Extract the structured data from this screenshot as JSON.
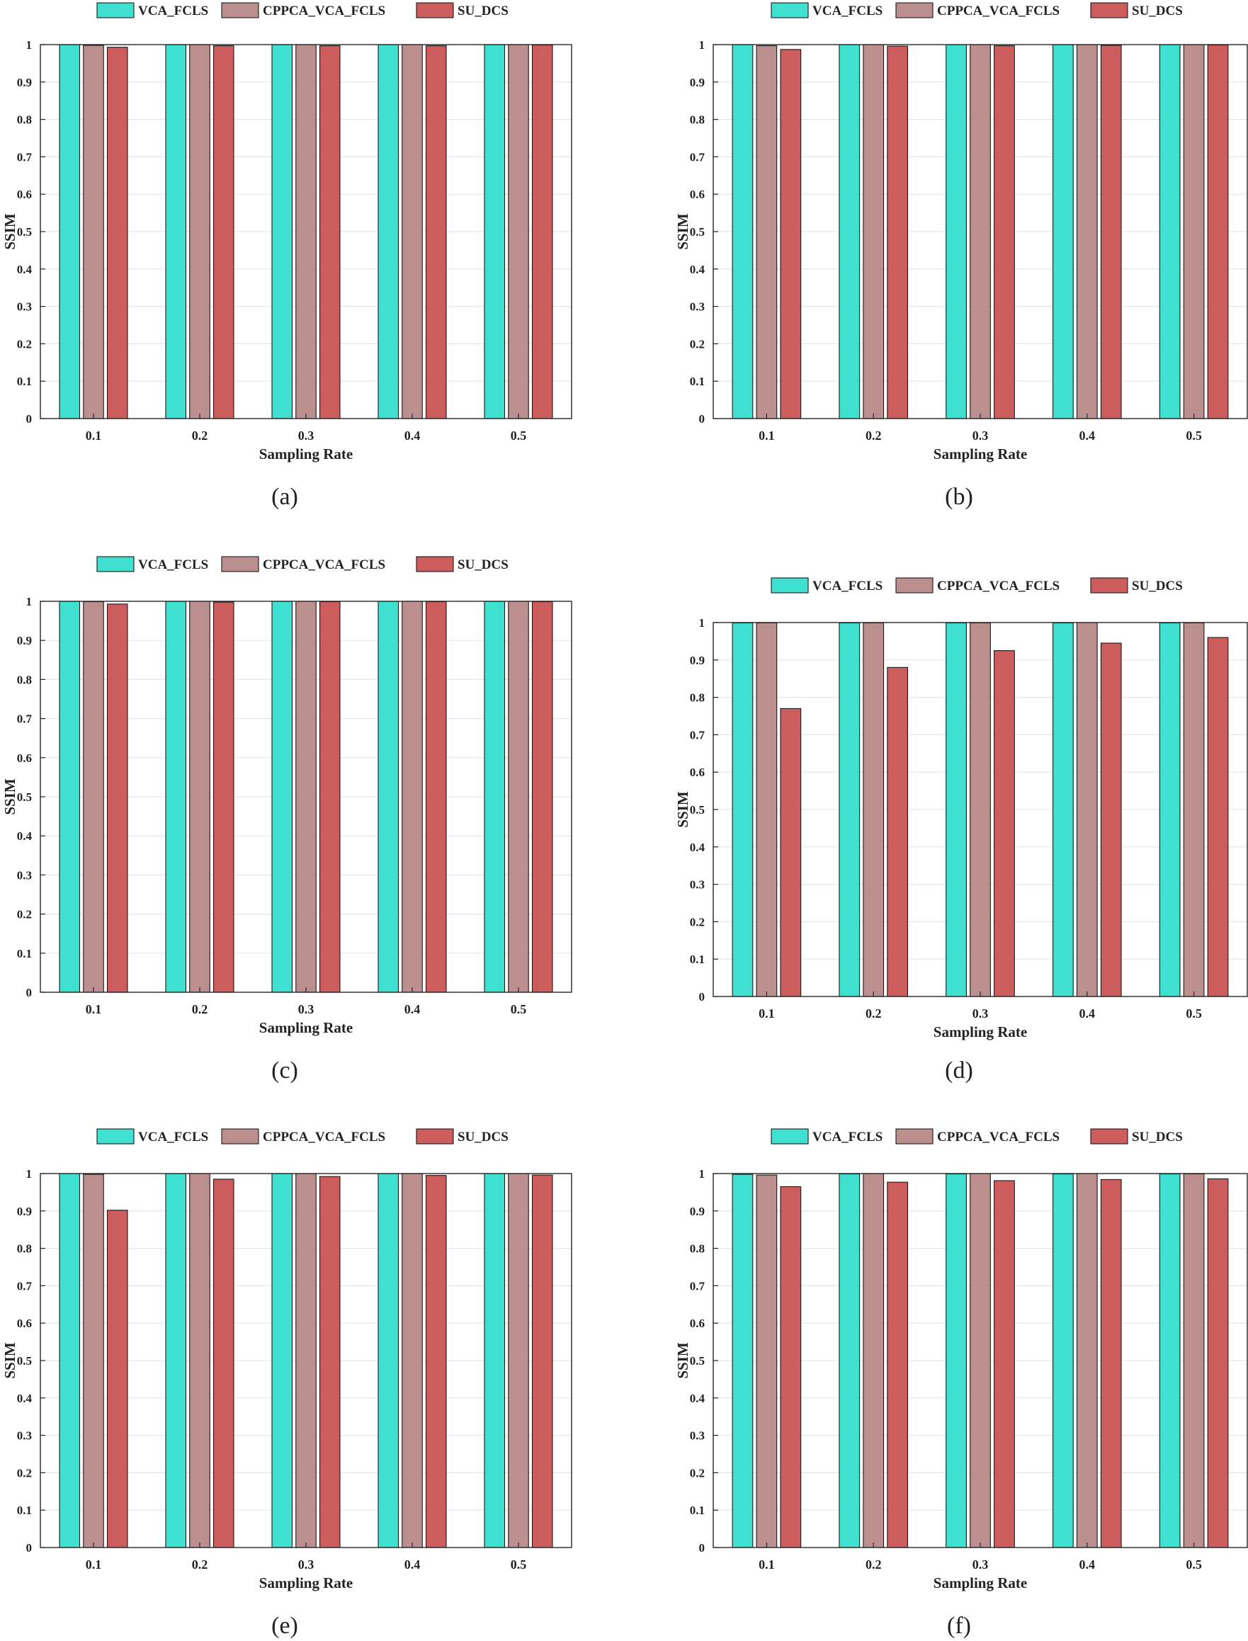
{
  "colors": {
    "VCA_FCLS": "#40E0D0",
    "CPPCA_VCA_FCLS": "#BC8F8F",
    "SU_DCS": "#CD5C5C",
    "axis": "#262626",
    "grid": "#e6e6e6"
  },
  "chart_data": [
    {
      "type": "bar",
      "caption": "(a)",
      "categories": [
        "0.1",
        "0.2",
        "0.3",
        "0.4",
        "0.5"
      ],
      "series": [
        {
          "name": "VCA_FCLS",
          "values": [
            1.0,
            1.0,
            1.0,
            1.0,
            1.0
          ]
        },
        {
          "name": "CPPCA_VCA_FCLS",
          "values": [
            0.998,
            1.0,
            1.0,
            1.0,
            1.0
          ]
        },
        {
          "name": "SU_DCS",
          "values": [
            0.993,
            0.997,
            0.997,
            0.997,
            0.999
          ]
        }
      ],
      "xlabel": "Sampling Rate",
      "ylabel": "SSIM",
      "ylim": [
        0,
        1
      ],
      "yticks": [
        "0",
        "0.1",
        "0.2",
        "0.3",
        "0.4",
        "0.5",
        "0.6",
        "0.7",
        "0.8",
        "0.9",
        "1"
      ],
      "grid": true,
      "legend": "top"
    },
    {
      "type": "bar",
      "caption": "(b)",
      "categories": [
        "0.1",
        "0.2",
        "0.3",
        "0.4",
        "0.5"
      ],
      "series": [
        {
          "name": "VCA_FCLS",
          "values": [
            1.0,
            1.0,
            1.0,
            1.0,
            1.0
          ]
        },
        {
          "name": "CPPCA_VCA_FCLS",
          "values": [
            0.997,
            1.0,
            1.0,
            1.0,
            1.0
          ]
        },
        {
          "name": "SU_DCS",
          "values": [
            0.987,
            0.996,
            0.997,
            0.998,
            0.999
          ]
        }
      ],
      "xlabel": "Sampling Rate",
      "ylabel": "SSIM",
      "ylim": [
        0,
        1
      ],
      "yticks": [
        "0",
        "0.1",
        "0.2",
        "0.3",
        "0.4",
        "0.5",
        "0.6",
        "0.7",
        "0.8",
        "0.9",
        "1"
      ],
      "grid": true,
      "legend": "top"
    },
    {
      "type": "bar",
      "caption": "(c)",
      "categories": [
        "0.1",
        "0.2",
        "0.3",
        "0.4",
        "0.5"
      ],
      "series": [
        {
          "name": "VCA_FCLS",
          "values": [
            1.0,
            1.0,
            1.0,
            1.0,
            1.0
          ]
        },
        {
          "name": "CPPCA_VCA_FCLS",
          "values": [
            0.999,
            1.0,
            1.0,
            1.0,
            1.0
          ]
        },
        {
          "name": "SU_DCS",
          "values": [
            0.993,
            0.998,
            0.999,
            0.999,
            0.999
          ]
        }
      ],
      "xlabel": "Sampling Rate",
      "ylabel": "SSIM",
      "ylim": [
        0,
        1
      ],
      "yticks": [
        "0",
        "0.1",
        "0.2",
        "0.3",
        "0.4",
        "0.5",
        "0.6",
        "0.7",
        "0.8",
        "0.9",
        "1"
      ],
      "grid": true,
      "legend": "top"
    },
    {
      "type": "bar",
      "caption": "(d)",
      "categories": [
        "0.1",
        "0.2",
        "0.3",
        "0.4",
        "0.5"
      ],
      "series": [
        {
          "name": "VCA_FCLS",
          "values": [
            0.999,
            0.999,
            0.999,
            0.999,
            0.999
          ]
        },
        {
          "name": "CPPCA_VCA_FCLS",
          "values": [
            0.999,
            0.999,
            0.999,
            1.0,
            0.999
          ]
        },
        {
          "name": "SU_DCS",
          "values": [
            0.77,
            0.88,
            0.925,
            0.945,
            0.96
          ]
        }
      ],
      "xlabel": "Sampling Rate",
      "ylabel": "SSIM",
      "ylim": [
        0,
        1
      ],
      "yticks": [
        "0",
        "0.1",
        "0.2",
        "0.3",
        "0.4",
        "0.5",
        "0.6",
        "0.7",
        "0.8",
        "0.9",
        "1"
      ],
      "grid": true,
      "legend": "top"
    },
    {
      "type": "bar",
      "caption": "(e)",
      "categories": [
        "0.1",
        "0.2",
        "0.3",
        "0.4",
        "0.5"
      ],
      "series": [
        {
          "name": "VCA_FCLS",
          "values": [
            1.0,
            1.0,
            1.0,
            1.0,
            1.0
          ]
        },
        {
          "name": "CPPCA_VCA_FCLS",
          "values": [
            0.998,
            1.0,
            1.0,
            1.0,
            1.0
          ]
        },
        {
          "name": "SU_DCS",
          "values": [
            0.902,
            0.985,
            0.992,
            0.995,
            0.996
          ]
        }
      ],
      "xlabel": "Sampling Rate",
      "ylabel": "SSIM",
      "ylim": [
        0,
        1
      ],
      "yticks": [
        "0",
        "0.1",
        "0.2",
        "0.3",
        "0.4",
        "0.5",
        "0.6",
        "0.7",
        "0.8",
        "0.9",
        "1"
      ],
      "grid": true,
      "legend": "top"
    },
    {
      "type": "bar",
      "caption": "(f)",
      "categories": [
        "0.1",
        "0.2",
        "0.3",
        "0.4",
        "0.5"
      ],
      "series": [
        {
          "name": "VCA_FCLS",
          "values": [
            0.998,
            0.999,
            0.999,
            0.999,
            0.999
          ]
        },
        {
          "name": "CPPCA_VCA_FCLS",
          "values": [
            0.996,
            1.0,
            1.0,
            1.0,
            0.999
          ]
        },
        {
          "name": "SU_DCS",
          "values": [
            0.965,
            0.977,
            0.981,
            0.984,
            0.986
          ]
        }
      ],
      "xlabel": "Sampling Rate",
      "ylabel": "SSIM",
      "ylim": [
        0,
        1
      ],
      "yticks": [
        "0",
        "0.1",
        "0.2",
        "0.3",
        "0.4",
        "0.5",
        "0.6",
        "0.7",
        "0.8",
        "0.9",
        "1"
      ],
      "grid": true,
      "legend": "top"
    }
  ]
}
